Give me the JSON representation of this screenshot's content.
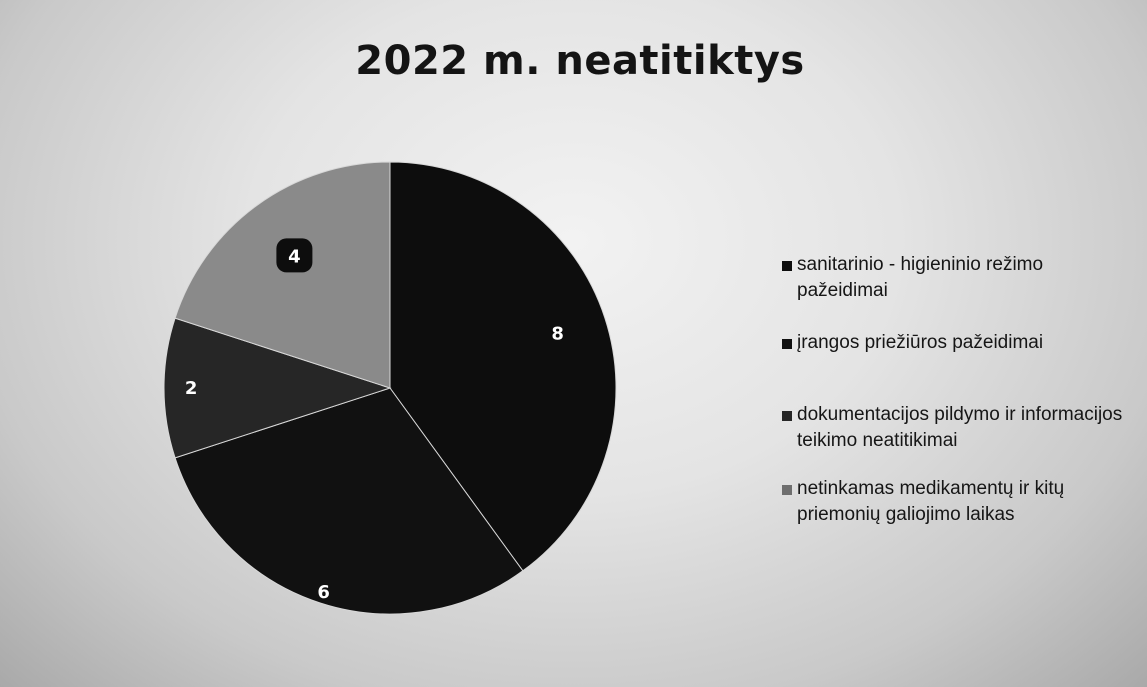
{
  "chart_data": {
    "type": "pie",
    "title": "2022 m. neatitiktys",
    "categories": [
      "sanitarinio - higieninio režimo pažeidimai",
      "įrangos priežiūros pažeidimai",
      "dokumentacijos pildymo ir informacijos teikimo neatitikimai",
      "netinkamas medikamentų ir kitų priemonių galiojimo laikas"
    ],
    "values": [
      8,
      6,
      2,
      4
    ],
    "data_labels": [
      "8",
      "6",
      "2",
      "4"
    ],
    "colors": [
      "#0d0d0d",
      "#111111",
      "#262626",
      "#8a8a8a"
    ],
    "legend": "right",
    "start_angle": "12 o'clock",
    "direction": "clockwise"
  }
}
